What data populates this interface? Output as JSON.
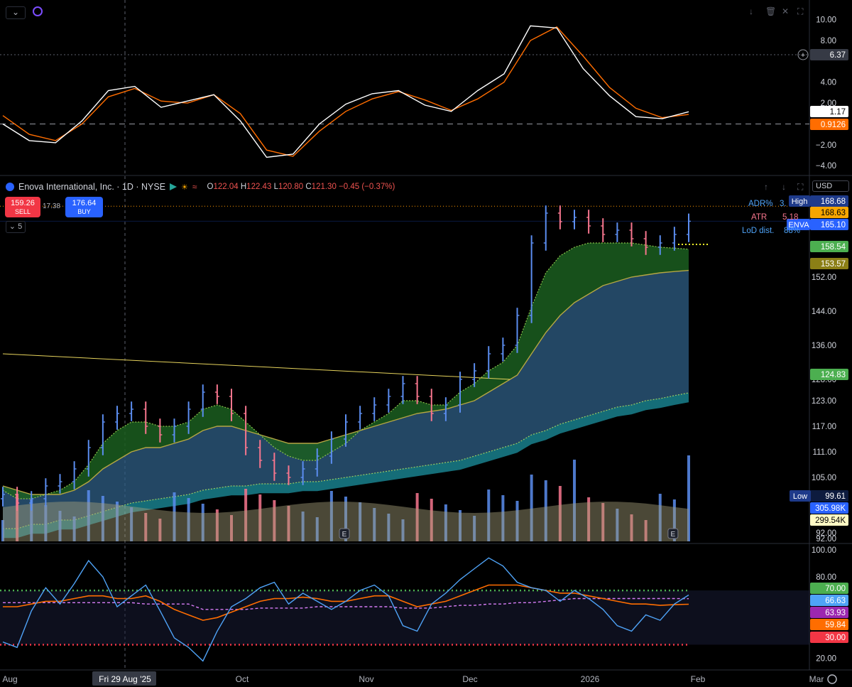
{
  "header": {
    "symbol_title": "Enova International, Inc. · 1D · NYSE",
    "ohlc": {
      "o_label": "O",
      "o": "122.04",
      "h_label": "H",
      "h": "122.43",
      "l_label": "L",
      "l": "120.80",
      "c_label": "C",
      "c": "121.30",
      "change": "−0.45 (−0.37%)"
    },
    "sell_price": "159.26",
    "sell_label": "SELL",
    "spread": "17.38",
    "buy_price": "176.64",
    "buy_label": "BUY",
    "interval_toggle": "5",
    "currency": "USD"
  },
  "stats": {
    "adr_label": "ADR%",
    "adr_value": "3.",
    "atr_label": "ATR",
    "atr_value": "5.18",
    "lod_label": "LoD dist.",
    "lod_value": "88%"
  },
  "colors": {
    "bg": "#000000",
    "up": "#5b8def",
    "down": "#f7768e",
    "ema_fast": "#8bc34a",
    "ema_mid": "#b5a642",
    "ema_slow": "#26c6da",
    "rsi": "#4fa3f7",
    "rsi_ma": "#ff6d00",
    "macd": "#ffffff",
    "signal": "#ff6d00",
    "accent": "#2962ff"
  },
  "x_axis": [
    "Aug",
    "Fri 29 Aug '25",
    "Oct",
    "Nov",
    "Dec",
    "2026",
    "Feb",
    "Mar"
  ],
  "chart_data": [
    {
      "type": "line",
      "name": "macd-pane",
      "y_ticks": [
        "10.00",
        "8.00",
        "4.00",
        "2.00",
        "−2.00",
        "−4.00"
      ],
      "ylim": [
        -4.6,
        11.2
      ],
      "macd": [
        0.0,
        -1.6,
        -1.8,
        0.3,
        3.2,
        3.6,
        1.6,
        2.2,
        2.8,
        0.3,
        -3.2,
        -2.9,
        0.0,
        1.9,
        2.9,
        3.2,
        1.8,
        1.2,
        3.2,
        4.8,
        9.4,
        9.2,
        5.3,
        2.7,
        0.7,
        0.5,
        1.17
      ],
      "signal": [
        0.8,
        -1.0,
        -1.6,
        0.0,
        2.6,
        3.4,
        2.2,
        2.0,
        2.8,
        1.0,
        -2.5,
        -3.1,
        -0.7,
        1.2,
        2.4,
        3.1,
        2.3,
        1.3,
        2.4,
        4.0,
        8.0,
        9.3,
        6.5,
        3.5,
        1.5,
        0.6,
        0.9126
      ],
      "value_labels": {
        "macd": "1.17",
        "signal": "0.9126",
        "crosshair": "6.37"
      }
    },
    {
      "type": "bar",
      "name": "price-pane",
      "y_ticks": [
        "168.68",
        "152.00",
        "144.00",
        "136.00",
        "128.00",
        "123.00",
        "117.00",
        "111.00",
        "105.00",
        "99.61",
        "92.00"
      ],
      "ylim": [
        90,
        172
      ],
      "closes": [
        101,
        99,
        100,
        103,
        104,
        107,
        112,
        118,
        120,
        121,
        117,
        115,
        117,
        121,
        125,
        124,
        120,
        112,
        109,
        106,
        105,
        107,
        110,
        114,
        118,
        120,
        122,
        124,
        127,
        124,
        120,
        122,
        128,
        130,
        134,
        136,
        143,
        160,
        167,
        165,
        166,
        164,
        162,
        163,
        161,
        159,
        160,
        162,
        165.1
      ],
      "ema_fast": [
        102,
        100,
        100,
        101,
        102,
        104,
        108,
        113,
        116,
        118,
        118,
        117,
        117,
        118,
        121,
        122,
        121,
        118,
        115,
        112,
        110,
        109,
        109,
        111,
        113,
        116,
        118,
        120,
        123,
        123,
        122,
        122,
        125,
        127,
        130,
        132,
        136,
        145,
        153,
        157,
        159,
        160,
        160,
        160,
        160,
        159.5,
        159,
        158.8,
        158.54
      ],
      "ema_mid": [
        103,
        102,
        101,
        101,
        101,
        102,
        104,
        107,
        109,
        111,
        112,
        112,
        113,
        114,
        116,
        117,
        117,
        116,
        115,
        114,
        113,
        113,
        113,
        114,
        115,
        116,
        117,
        118,
        119,
        120,
        120.5,
        121,
        122,
        123,
        125,
        127,
        129,
        134,
        139,
        143,
        146,
        148,
        150,
        151,
        152,
        152.5,
        153,
        153.3,
        153.57
      ],
      "ema_slow": [
        93,
        93,
        94,
        94,
        95,
        95,
        96,
        97,
        98,
        99,
        99.5,
        100,
        100.5,
        101,
        102,
        102.5,
        103,
        103,
        103.5,
        103.5,
        103.5,
        104,
        104,
        104.5,
        105,
        105.5,
        106,
        106.5,
        107,
        107.5,
        108,
        108.5,
        109,
        110,
        111,
        112,
        113,
        115,
        116,
        117.5,
        118.5,
        119.5,
        120.5,
        121.5,
        122,
        123,
        123.5,
        124.2,
        124.83
      ],
      "horizontal_levels": {
        "high": "168.63"
      },
      "value_labels": {
        "high_label": "High",
        "high_value": "168.68",
        "prior_high": "168.63",
        "symbol": "ENVA",
        "last": "165.10",
        "ema_fast": "158.54",
        "ema_mid": "153.57",
        "ema_slow": "124.83",
        "low_label": "Low",
        "low_value": "99.61",
        "vol": "305.98K",
        "vol_ma": "299.54K"
      },
      "trendline": {
        "from": [
          0,
          134
        ],
        "to": [
          35,
          128
        ]
      },
      "earnings_markers": [
        "E",
        "E"
      ]
    },
    {
      "type": "line",
      "name": "rsi-pane",
      "y_ticks": [
        "100.00",
        "80.00",
        "20.00"
      ],
      "ylim": [
        14,
        102
      ],
      "rsi": [
        32,
        28,
        55,
        72,
        60,
        75,
        92,
        80,
        58,
        66,
        74,
        55,
        35,
        28,
        18,
        40,
        58,
        64,
        72,
        76,
        60,
        68,
        62,
        56,
        62,
        70,
        74,
        66,
        44,
        40,
        60,
        68,
        78,
        86,
        94,
        88,
        76,
        72,
        70,
        62,
        70,
        64,
        56,
        44,
        40,
        52,
        48,
        60,
        66.63
      ],
      "rsi_ma": [
        58,
        58,
        60,
        62,
        62,
        64,
        66,
        66,
        64,
        64,
        66,
        62,
        56,
        52,
        48,
        50,
        54,
        58,
        62,
        64,
        64,
        65,
        64,
        62,
        62,
        64,
        66,
        66,
        62,
        58,
        60,
        62,
        66,
        70,
        74,
        74,
        74,
        72,
        70,
        68,
        68,
        66,
        64,
        62,
        60,
        60,
        59,
        59.5,
        59.84
      ],
      "rsi_signal": [
        61,
        61,
        61,
        61,
        61,
        61,
        61,
        61,
        61,
        61,
        60,
        60,
        60,
        60,
        56,
        56,
        56,
        56,
        57,
        57,
        57,
        57,
        58,
        58,
        58,
        58,
        58,
        58,
        57,
        57,
        57,
        58,
        59,
        59,
        60,
        60,
        61,
        61,
        62,
        63,
        64,
        64,
        64,
        64,
        64,
        64,
        64,
        64,
        63.93
      ],
      "levels": {
        "upper": "70.00",
        "lower": "30.00"
      },
      "value_labels": {
        "upper": "70.00",
        "rsi": "66.63",
        "signal": "63.93",
        "ma": "59.84",
        "lower": "30.00"
      }
    }
  ]
}
